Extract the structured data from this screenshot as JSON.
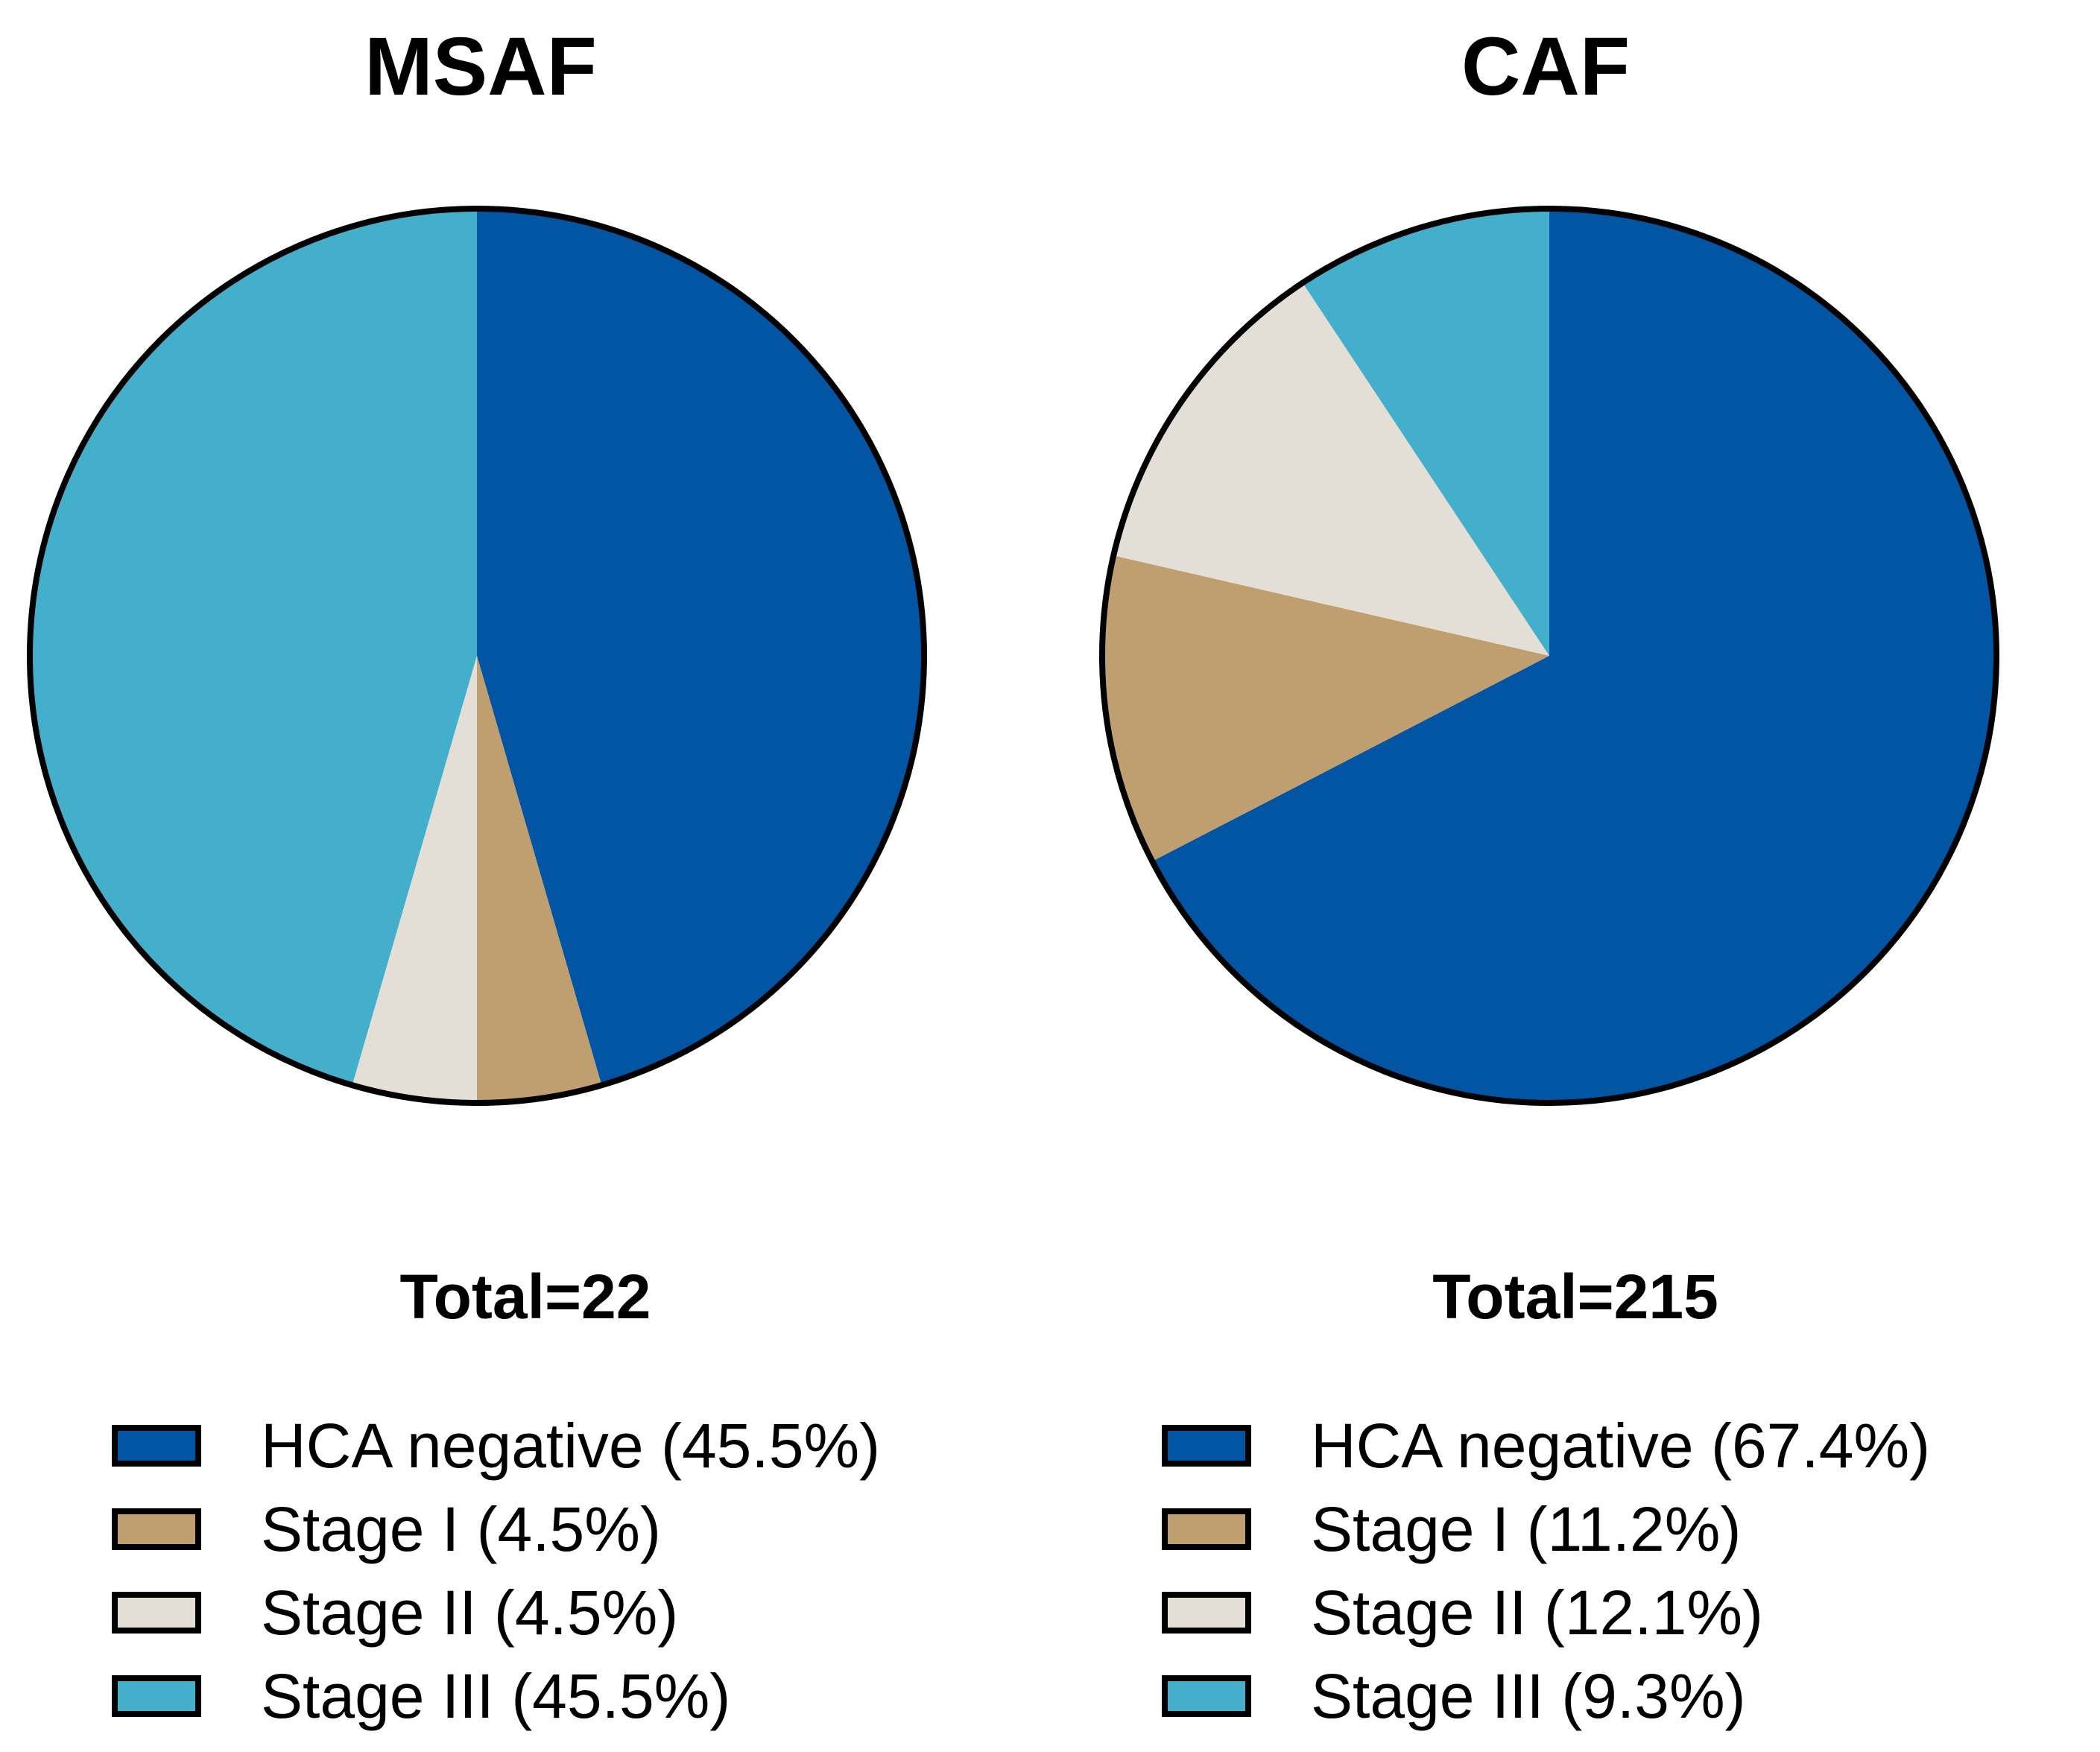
{
  "chart_data": [
    {
      "type": "pie",
      "title": "MSAF",
      "total_label": "Total=22",
      "slices": [
        {
          "label": "HCA negative (45.5%)",
          "value": 45.5,
          "color": "#0255A3"
        },
        {
          "label": "Stage I (4.5%)",
          "value": 4.5,
          "color": "#BF9E70"
        },
        {
          "label": "Stage II (4.5%)",
          "value": 4.5,
          "color": "#E4DFD6"
        },
        {
          "label": "Stage III (45.5%)",
          "value": 45.5,
          "color": "#44AFCB"
        }
      ]
    },
    {
      "type": "pie",
      "title": "CAF",
      "total_label": "Total=215",
      "slices": [
        {
          "label": "HCA negative (67.4%)",
          "value": 67.4,
          "color": "#0255A3"
        },
        {
          "label": "Stage I (11.2%)",
          "value": 11.2,
          "color": "#BF9E70"
        },
        {
          "label": "Stage II (12.1%)",
          "value": 12.1,
          "color": "#E4DFD6"
        },
        {
          "label": "Stage III (9.3%)",
          "value": 9.3,
          "color": "#44AFCB"
        }
      ]
    }
  ]
}
